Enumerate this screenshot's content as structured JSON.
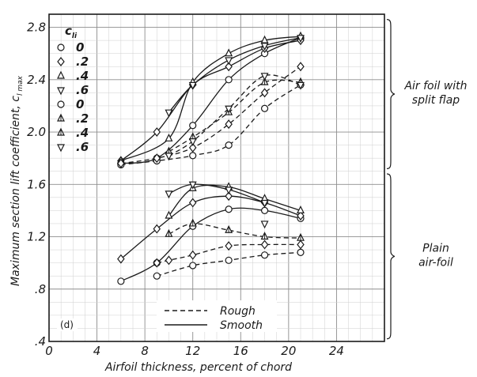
{
  "chart_data": {
    "type": "line",
    "panel_label": "(d)",
    "xlabel": "Airfoil thickness, percent of chord",
    "ylabel": "Maximum section lift coefficient, c",
    "ylabel_subscript": "l max",
    "xlim": [
      0,
      28
    ],
    "ylim": [
      0.4,
      2.9
    ],
    "x_ticks": [
      0,
      4,
      8,
      12,
      16,
      20,
      24
    ],
    "x_tick_labels": [
      "0",
      "4",
      "8",
      "12",
      "16",
      "20",
      "24"
    ],
    "y_ticks": [
      0.4,
      0.8,
      1.2,
      1.6,
      2.0,
      2.4,
      2.8
    ],
    "y_tick_labels": [
      ".4",
      ".8",
      "1.2",
      "1.6",
      "2.0",
      "2.4",
      "2.8"
    ],
    "grid": true,
    "key": {
      "header": "c",
      "header_subscript": "li",
      "values": [
        "0",
        ".2",
        ".4",
        ".6",
        "0",
        ".2",
        ".4",
        ".6"
      ]
    },
    "legend": {
      "placement": "bottom-center",
      "entries": [
        {
          "label": "Rough",
          "dash": "dashed"
        },
        {
          "label": "Smooth",
          "dash": "solid"
        }
      ]
    },
    "groups": [
      {
        "label_line1": "Air foil with",
        "label_line2": "split flap",
        "y_range": [
          1.72,
          2.86
        ]
      },
      {
        "label_line1": "Plain",
        "label_line2": "air-foil",
        "y_range": [
          0.42,
          1.68
        ]
      }
    ],
    "series": [
      {
        "marker": "circle",
        "cli": "0",
        "group": "split flap",
        "condition": "smooth",
        "x": [
          6,
          9,
          12,
          15,
          18,
          21
        ],
        "y": [
          1.76,
          1.8,
          2.05,
          2.4,
          2.6,
          2.72
        ]
      },
      {
        "marker": "diamond",
        "cli": ".2",
        "group": "split flap",
        "condition": "smooth",
        "x": [
          6,
          9,
          12,
          15,
          18,
          21
        ],
        "y": [
          1.78,
          2.0,
          2.36,
          2.5,
          2.64,
          2.7
        ]
      },
      {
        "marker": "triangle-up",
        "cli": ".4",
        "group": "split flap",
        "condition": "smooth",
        "x": [
          6,
          10,
          12,
          15,
          18,
          21
        ],
        "y": [
          1.78,
          1.95,
          2.38,
          2.6,
          2.7,
          2.73
        ]
      },
      {
        "marker": "triangle-down",
        "cli": ".6",
        "group": "split flap",
        "condition": "smooth",
        "x": [
          10,
          12,
          15,
          18,
          21
        ],
        "y": [
          2.15,
          2.36,
          2.55,
          2.66,
          2.72
        ]
      },
      {
        "marker": "circle",
        "cli": "0",
        "group": "split flap",
        "condition": "rough",
        "x": [
          6,
          9,
          12,
          15,
          18,
          21
        ],
        "y": [
          1.75,
          1.78,
          1.82,
          1.9,
          2.18,
          2.36
        ]
      },
      {
        "marker": "diamond",
        "cli": ".2",
        "group": "split flap",
        "condition": "rough",
        "x": [
          6,
          9,
          12,
          15,
          18,
          21
        ],
        "y": [
          1.76,
          1.8,
          1.88,
          2.06,
          2.3,
          2.5
        ]
      },
      {
        "marker": "half-triangle-up",
        "cli": ".4",
        "group": "split flap",
        "condition": "rough",
        "x": [
          10,
          12,
          15,
          18,
          21
        ],
        "y": [
          1.85,
          1.96,
          2.15,
          2.38,
          2.38
        ]
      },
      {
        "marker": "triangle-down",
        "cli": ".6",
        "group": "split flap",
        "condition": "rough",
        "x": [
          10,
          12,
          15,
          18,
          21
        ],
        "y": [
          1.82,
          1.93,
          2.18,
          2.43,
          2.36
        ]
      },
      {
        "marker": "circle",
        "cli": "0",
        "group": "plain",
        "condition": "smooth",
        "x": [
          6,
          9,
          12,
          15,
          18,
          21
        ],
        "y": [
          0.86,
          1.0,
          1.28,
          1.41,
          1.4,
          1.34
        ]
      },
      {
        "marker": "diamond",
        "cli": ".2",
        "group": "plain",
        "condition": "smooth",
        "x": [
          6,
          9,
          12,
          15,
          18,
          21
        ],
        "y": [
          1.03,
          1.26,
          1.46,
          1.51,
          1.46,
          1.36
        ]
      },
      {
        "marker": "triangle-up",
        "cli": ".4",
        "group": "plain",
        "condition": "smooth",
        "x": [
          10,
          12,
          15,
          18,
          21
        ],
        "y": [
          1.36,
          1.57,
          1.58,
          1.49,
          1.4
        ]
      },
      {
        "marker": "triangle-down",
        "cli": ".6",
        "group": "plain",
        "condition": "smooth",
        "x": [
          10,
          12,
          15,
          18
        ],
        "y": [
          1.53,
          1.6,
          1.56,
          1.46
        ]
      },
      {
        "marker": "circle",
        "cli": "0",
        "group": "plain",
        "condition": "rough",
        "x": [
          9,
          12,
          15,
          18,
          21
        ],
        "y": [
          0.9,
          0.98,
          1.02,
          1.06,
          1.08
        ]
      },
      {
        "marker": "diamond",
        "cli": ".2",
        "group": "plain",
        "condition": "rough",
        "x": [
          9,
          10,
          12,
          15,
          18,
          21
        ],
        "y": [
          1.0,
          1.02,
          1.06,
          1.13,
          1.14,
          1.14
        ]
      },
      {
        "marker": "half-triangle-up",
        "cli": ".4",
        "group": "plain",
        "condition": "rough",
        "x": [
          10,
          12,
          15,
          18,
          21
        ],
        "y": [
          1.22,
          1.3,
          1.25,
          1.2,
          1.19
        ]
      },
      {
        "marker": "triangle-down",
        "cli": ".6",
        "group": "plain",
        "condition": "rough",
        "x": [
          18
        ],
        "y": [
          1.3
        ]
      }
    ]
  }
}
